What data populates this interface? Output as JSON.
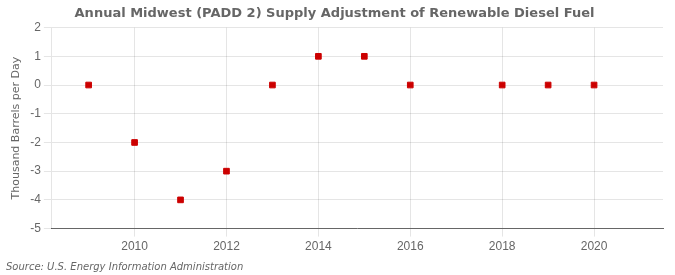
{
  "chart_data": {
    "type": "scatter",
    "title": "Annual Midwest (PADD 2) Supply Adjustment of Renewable Diesel Fuel",
    "ylabel": "Thousand Barrels per Day",
    "source": "Source: U.S. Energy Information Administration",
    "x": [
      2009,
      2010,
      2011,
      2012,
      2013,
      2014,
      2015,
      2016,
      2018,
      2019,
      2020
    ],
    "values": [
      0.0,
      -2.0,
      -4.0,
      -3.0,
      0.0,
      1.0,
      1.0,
      0.0,
      0.0,
      0.0,
      0.0
    ],
    "color": "#cc0000",
    "marker": "square",
    "xlim": [
      2008.2,
      2021.5
    ],
    "ylim": [
      -5,
      2
    ],
    "xticks": [
      2010,
      2012,
      2014,
      2016,
      2018,
      2020
    ],
    "yticks": [
      -5,
      -4,
      -3,
      -2,
      -1,
      0,
      1,
      2
    ],
    "grid": true
  }
}
